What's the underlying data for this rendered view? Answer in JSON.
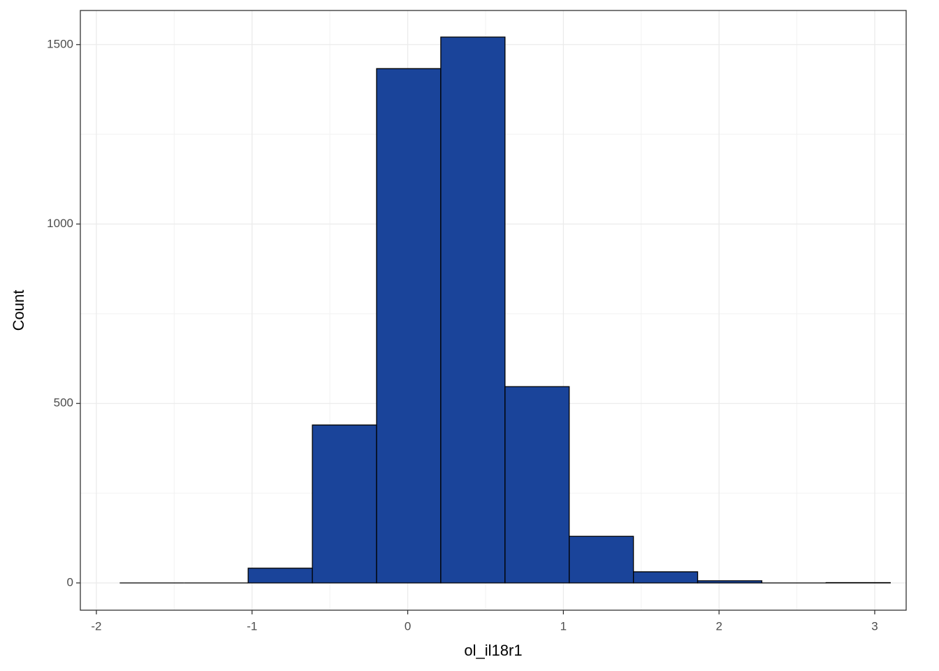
{
  "chart_data": {
    "type": "histogram",
    "x_label": "ol_il18r1",
    "y_label": "Count",
    "bins": [
      -1.85,
      -1.4375,
      -1.025,
      -0.6125,
      -0.2,
      0.2125,
      0.625,
      1.0375,
      1.45,
      1.8625,
      2.275,
      2.6875,
      3.1
    ],
    "counts": [
      0,
      0,
      41,
      440,
      1433,
      1521,
      547,
      130,
      31,
      6,
      0,
      1
    ],
    "color": "#1a449a",
    "edge_color": "#000000",
    "xlim": [
      -2.103,
      3.202
    ],
    "xticks": [
      -2,
      -1,
      0,
      1,
      2,
      3
    ],
    "ylim": [
      -76,
      1595
    ],
    "yticks": [
      0,
      500,
      1000,
      1500
    ],
    "xminor": [
      -1.5,
      -0.5,
      0.5,
      1.5,
      2.5
    ],
    "yminor": [
      250,
      750,
      1250
    ],
    "grid": true
  }
}
